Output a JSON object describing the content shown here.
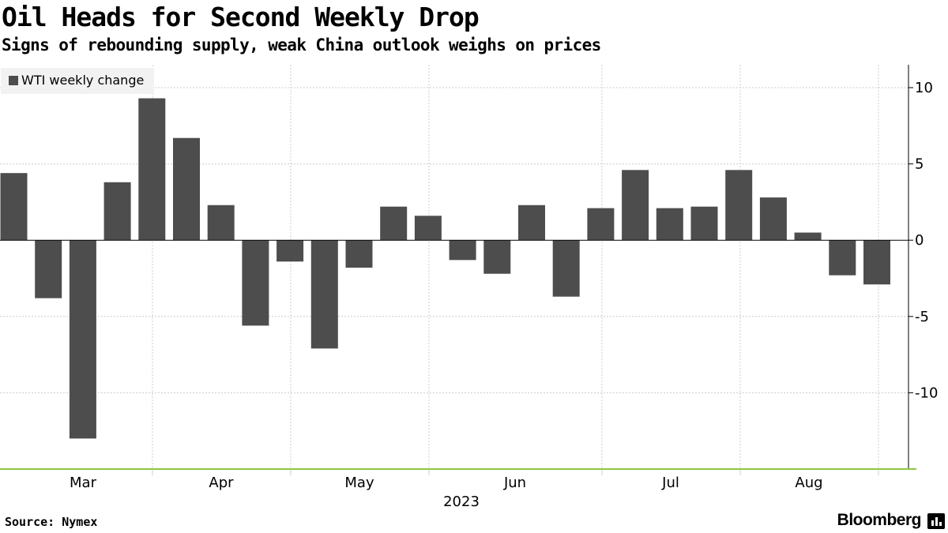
{
  "header": {
    "title": "Oil Heads for Second Weekly Drop",
    "subtitle": "Signs of rebounding supply, weak China outlook weighs on prices"
  },
  "footer": {
    "source": "Source: Nymex",
    "brand": "Bloomberg"
  },
  "colors": {
    "bar": "#4d4d4d",
    "grid": "#cccccc",
    "baseline": "#8dc63f",
    "axis": "#000000"
  },
  "chart_data": {
    "type": "bar",
    "title": "Oil Heads for Second Weekly Drop",
    "subtitle": "Signs of rebounding supply, weak China outlook weighs on prices",
    "legend": "top-left",
    "series": [
      {
        "name": "WTI weekly change",
        "values": [
          4.4,
          -3.8,
          -13.0,
          3.8,
          9.3,
          6.7,
          2.3,
          -5.6,
          -1.4,
          -7.1,
          -1.8,
          2.2,
          1.6,
          -1.3,
          -2.2,
          2.3,
          -3.7,
          2.1,
          4.6,
          2.1,
          2.2,
          4.6,
          2.8,
          0.5,
          -2.3,
          -2.9
        ]
      }
    ],
    "x_labels": [
      "Mar",
      "Apr",
      "May",
      "Jun",
      "Jul",
      "Aug"
    ],
    "x_year": "2023",
    "ylim": [
      -15,
      11.5
    ],
    "y_ticks": [
      10,
      5,
      0,
      -5,
      -10
    ],
    "xlabel": "",
    "ylabel": "",
    "grid": true
  }
}
